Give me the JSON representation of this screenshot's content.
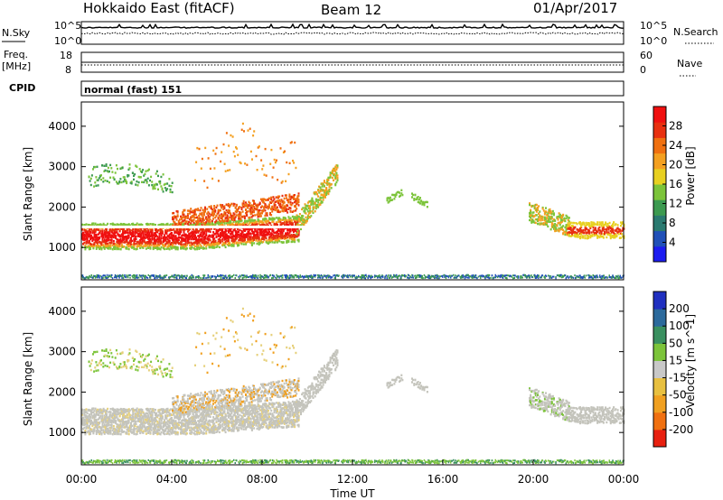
{
  "header": {
    "title": "Hokkaido East (fitACF)",
    "beam": "Beam 12",
    "date": "01/Apr/2017"
  },
  "noise_panel": {
    "left_label": "N.Sky",
    "right_label": "N.Search",
    "left_ticks": [
      "10^5",
      "10^0"
    ],
    "right_ticks": [
      "10^5",
      "10^0"
    ]
  },
  "freq_panel": {
    "left_label_1": "Freq.",
    "left_label_2": "[MHz]",
    "left_ticks": [
      "18",
      "8"
    ],
    "right_label": "Nave",
    "right_ticks": [
      "60",
      "0"
    ]
  },
  "cpid_panel": {
    "label": "CPID",
    "mode": "normal (fast) 151"
  },
  "chart_data": [
    {
      "type": "heatmap",
      "name": "power",
      "ylabel": "Slant Range [km]",
      "xlim": [
        "00:00",
        "24:00"
      ],
      "ylim": [
        200,
        4600
      ],
      "yticks": [
        "1000",
        "2000",
        "3000",
        "4000"
      ],
      "colorbar": {
        "label": "Power [dB]",
        "ticks": [
          "4",
          "8",
          "12",
          "16",
          "20",
          "24",
          "28"
        ],
        "range": [
          0,
          32
        ],
        "colors": [
          "#1c1cf0",
          "#2050b8",
          "#2a7a70",
          "#3c9a50",
          "#7cc43a",
          "#e8d020",
          "#f4a020",
          "#f07010",
          "#e83010",
          "#f01010"
        ]
      }
    },
    {
      "type": "heatmap",
      "name": "velocity",
      "ylabel": "Slant Range [km]",
      "xlabel": "Time UT",
      "xlim": [
        "00:00",
        "24:00"
      ],
      "ylim": [
        200,
        4600
      ],
      "xticks": [
        "00:00",
        "04:00",
        "08:00",
        "12:00",
        "16:00",
        "20:00",
        "00:00"
      ],
      "yticks": [
        "1000",
        "2000",
        "3000",
        "4000"
      ],
      "colorbar": {
        "label": "Velocity [m s^-1]",
        "ticks": [
          "200",
          "100",
          "50",
          "15",
          "-15",
          "-50",
          "-100",
          "-200"
        ],
        "colors": [
          "#2030c0",
          "#2c6a9c",
          "#3a9060",
          "#7cc43a",
          "#c8c8c8",
          "#e8c040",
          "#f0a020",
          "#f07010",
          "#e82010"
        ]
      }
    }
  ]
}
